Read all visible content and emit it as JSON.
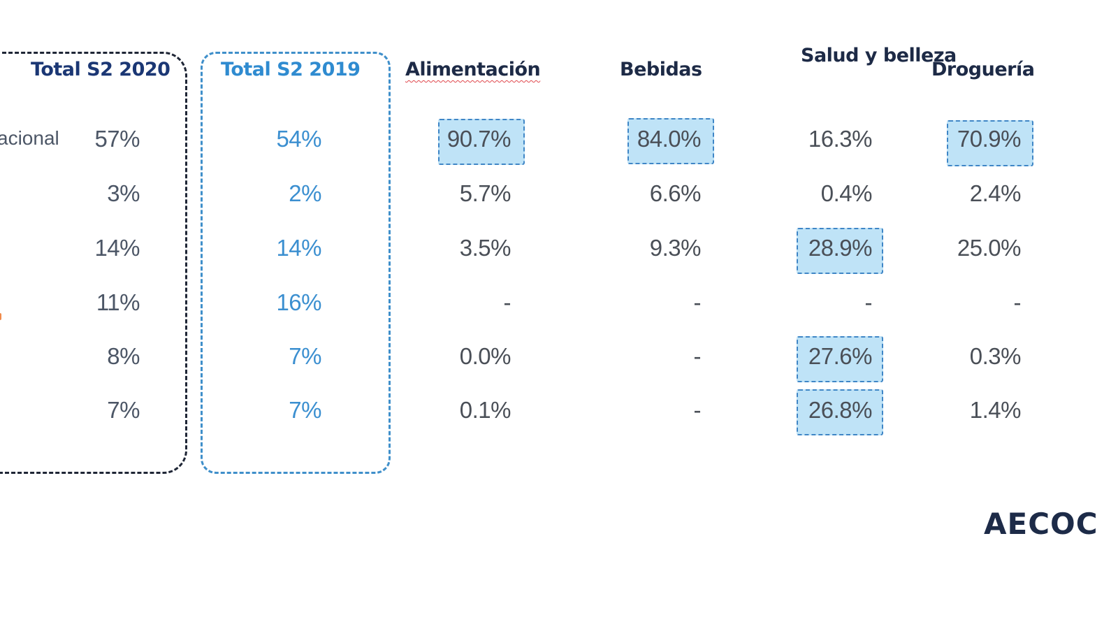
{
  "columns": {
    "total_2020": "Total S2 2020",
    "total_2019": "Total S2 2019",
    "alimentacion": "Alimentación",
    "bebidas": "Bebidas",
    "salud": "Salud y belleza",
    "drogueria": "Droguería"
  },
  "row_label_partial": "acional",
  "rows": [
    {
      "t2020": "57%",
      "t2019": "54%",
      "alim": "90.7%",
      "beb": "84.0%",
      "salud": "16.3%",
      "drog": "70.9%"
    },
    {
      "t2020": "3%",
      "t2019": "2%",
      "alim": "5.7%",
      "beb": "6.6%",
      "salud": "0.4%",
      "drog": "2.4%"
    },
    {
      "t2020": "14%",
      "t2019": "14%",
      "alim": "3.5%",
      "beb": "9.3%",
      "salud": "28.9%",
      "drog": "25.0%"
    },
    {
      "t2020": "11%",
      "t2019": "16%",
      "alim": "-",
      "beb": "-",
      "salud": "-",
      "drog": "-"
    },
    {
      "t2020": "8%",
      "t2019": "7%",
      "alim": "0.0%",
      "beb": "-",
      "salud": "27.6%",
      "drog": "0.3%"
    },
    {
      "t2020": "7%",
      "t2019": "7%",
      "alim": "0.1%",
      "beb": "-",
      "salud": "26.8%",
      "drog": "1.4%"
    }
  ],
  "highlighted": [
    "alim.0",
    "beb.0",
    "drog.0",
    "salud.2",
    "salud.4",
    "salud.5"
  ],
  "logo": "AECOC",
  "colors": {
    "navy": "#1b3774",
    "blue": "#2f8bd0",
    "highlight_fill": "#bfe3f7",
    "highlight_border": "#3f86c6",
    "value_gray": "#4a4f57"
  }
}
